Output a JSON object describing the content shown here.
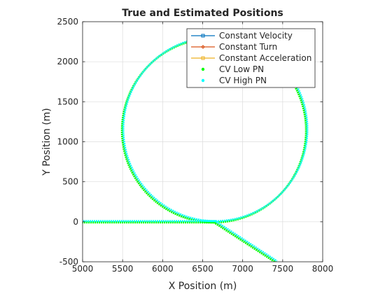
{
  "chart_data": {
    "type": "line",
    "title": "True and Estimated Positions",
    "xlabel": "X Position (m)",
    "ylabel": "Y Position (m)",
    "xlim": [
      5000,
      8000
    ],
    "ylim": [
      -500,
      2500
    ],
    "xticks": [
      5000,
      5500,
      6000,
      6500,
      7000,
      7500,
      8000
    ],
    "yticks": [
      -500,
      0,
      500,
      1000,
      1500,
      2000,
      2500
    ],
    "xtick_labels": [
      "5000",
      "5500",
      "6000",
      "6500",
      "7000",
      "7500",
      "8000"
    ],
    "ytick_labels": [
      "-500",
      "0",
      "500",
      "1000",
      "1500",
      "2000",
      "2500"
    ],
    "grid": true,
    "legend_position": "top-right",
    "trajectory": {
      "start": [
        5000,
        0
      ],
      "turn_start": [
        6650,
        0
      ],
      "circle_center": [
        6650,
        1150
      ],
      "circle_radius": 1150,
      "end": [
        7420,
        -500
      ]
    },
    "series": [
      {
        "name": "Constant Velocity",
        "color": "#0072BD",
        "marker": "square",
        "style": "line"
      },
      {
        "name": "Constant Turn",
        "color": "#D95319",
        "marker": "diamond",
        "style": "line"
      },
      {
        "name": "Constant Acceleration",
        "color": "#EDB120",
        "marker": "square",
        "style": "line"
      },
      {
        "name": "CV Low PN",
        "color": "#00FF00",
        "marker": "dot",
        "style": "points"
      },
      {
        "name": "CV High PN",
        "color": "#00FFFF",
        "marker": "dot",
        "style": "points"
      }
    ]
  }
}
